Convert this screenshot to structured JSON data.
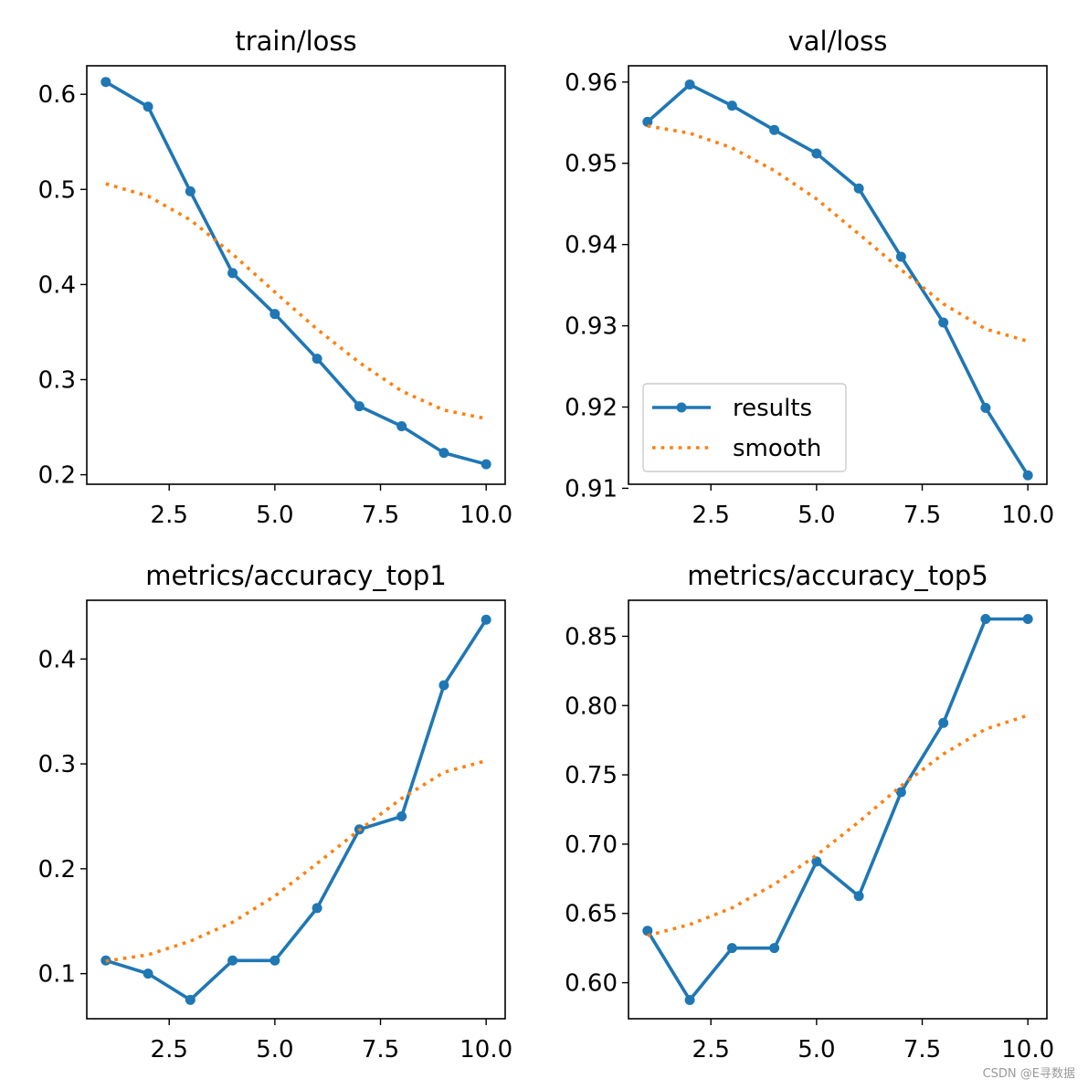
{
  "watermark": "CSDN @E寻数据",
  "colors": {
    "results": "#1f77b4",
    "smooth": "#ff7f0e",
    "axis": "#000000"
  },
  "legend": {
    "results_label": "results",
    "smooth_label": "smooth",
    "location": "lower-left",
    "panel": "val/loss"
  },
  "chart_data": [
    {
      "type": "line",
      "title": "train/loss",
      "xlabel": "",
      "ylabel": "",
      "xlim": [
        0.55,
        10.45
      ],
      "ylim": [
        0.19,
        0.63
      ],
      "xticks": [
        2.5,
        5.0,
        7.5,
        10.0
      ],
      "xtick_labels": [
        "2.5",
        "5.0",
        "7.5",
        "10.0"
      ],
      "yticks": [
        0.2,
        0.3,
        0.4,
        0.5,
        0.6
      ],
      "ytick_labels": [
        "0.2",
        "0.3",
        "0.4",
        "0.5",
        "0.6"
      ],
      "x": [
        1,
        2,
        3,
        4,
        5,
        6,
        7,
        8,
        9,
        10
      ],
      "series": [
        {
          "name": "results",
          "style": "solid-marker",
          "values": [
            0.613,
            0.587,
            0.498,
            0.412,
            0.369,
            0.322,
            0.272,
            0.251,
            0.223,
            0.211
          ]
        },
        {
          "name": "smooth",
          "style": "dotted",
          "values": [
            0.506,
            0.493,
            0.468,
            0.432,
            0.392,
            0.353,
            0.318,
            0.288,
            0.268,
            0.259
          ]
        }
      ]
    },
    {
      "type": "line",
      "title": "val/loss",
      "xlabel": "",
      "ylabel": "",
      "xlim": [
        0.55,
        10.45
      ],
      "ylim": [
        0.9105,
        0.962
      ],
      "xticks": [
        2.5,
        5.0,
        7.5,
        10.0
      ],
      "xtick_labels": [
        "2.5",
        "5.0",
        "7.5",
        "10.0"
      ],
      "yticks": [
        0.91,
        0.92,
        0.93,
        0.94,
        0.95,
        0.96
      ],
      "ytick_labels": [
        "0.91",
        "0.92",
        "0.93",
        "0.94",
        "0.95",
        "0.96"
      ],
      "legend": true,
      "x": [
        1,
        2,
        3,
        4,
        5,
        6,
        7,
        8,
        9,
        10
      ],
      "series": [
        {
          "name": "results",
          "style": "solid-marker",
          "values": [
            0.9551,
            0.9597,
            0.9571,
            0.9541,
            0.9512,
            0.9469,
            0.9385,
            0.9304,
            0.9199,
            0.9116
          ]
        },
        {
          "name": "smooth",
          "style": "dotted",
          "values": [
            0.9546,
            0.9537,
            0.9519,
            0.9491,
            0.9456,
            0.9413,
            0.9369,
            0.9327,
            0.9296,
            0.9281
          ]
        }
      ]
    },
    {
      "type": "line",
      "title": "metrics/accuracy_top1",
      "xlabel": "",
      "ylabel": "",
      "xlim": [
        0.55,
        10.45
      ],
      "ylim": [
        0.057,
        0.456
      ],
      "xticks": [
        2.5,
        5.0,
        7.5,
        10.0
      ],
      "xtick_labels": [
        "2.5",
        "5.0",
        "7.5",
        "10.0"
      ],
      "yticks": [
        0.1,
        0.2,
        0.3,
        0.4
      ],
      "ytick_labels": [
        "0.1",
        "0.2",
        "0.3",
        "0.4"
      ],
      "x": [
        1,
        2,
        3,
        4,
        5,
        6,
        7,
        8,
        9,
        10
      ],
      "series": [
        {
          "name": "results",
          "style": "solid-marker",
          "values": [
            0.1125,
            0.1,
            0.075,
            0.1125,
            0.1125,
            0.1625,
            0.2375,
            0.25,
            0.375,
            0.4375
          ]
        },
        {
          "name": "smooth",
          "style": "dotted",
          "values": [
            0.112,
            0.118,
            0.131,
            0.149,
            0.174,
            0.205,
            0.237,
            0.267,
            0.292,
            0.303
          ]
        }
      ]
    },
    {
      "type": "line",
      "title": "metrics/accuracy_top5",
      "xlabel": "",
      "ylabel": "",
      "xlim": [
        0.55,
        10.45
      ],
      "ylim": [
        0.574,
        0.876
      ],
      "xticks": [
        2.5,
        5.0,
        7.5,
        10.0
      ],
      "xtick_labels": [
        "2.5",
        "5.0",
        "7.5",
        "10.0"
      ],
      "yticks": [
        0.6,
        0.65,
        0.7,
        0.75,
        0.8,
        0.85
      ],
      "ytick_labels": [
        "0.60",
        "0.65",
        "0.70",
        "0.75",
        "0.80",
        "0.85"
      ],
      "x": [
        1,
        2,
        3,
        4,
        5,
        6,
        7,
        8,
        9,
        10
      ],
      "series": [
        {
          "name": "results",
          "style": "solid-marker",
          "values": [
            0.6375,
            0.5875,
            0.625,
            0.625,
            0.6875,
            0.6625,
            0.7375,
            0.7875,
            0.8625,
            0.8625
          ]
        },
        {
          "name": "smooth",
          "style": "dotted",
          "values": [
            0.634,
            0.642,
            0.654,
            0.671,
            0.692,
            0.716,
            0.742,
            0.765,
            0.783,
            0.793
          ]
        }
      ]
    }
  ]
}
